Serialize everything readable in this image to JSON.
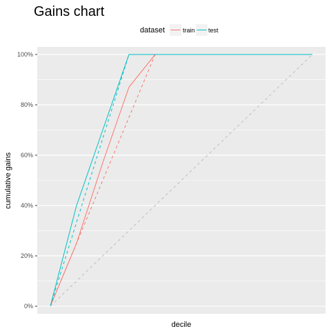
{
  "chart_data": {
    "type": "line",
    "title": "Gains chart",
    "xlabel": "decile",
    "ylabel": "cumulative gains",
    "x": [
      0,
      1,
      2,
      3,
      4,
      5,
      6,
      7,
      8,
      9,
      10
    ],
    "xlim": [
      -0.5,
      10.5
    ],
    "ylim": [
      -0.03,
      1.03
    ],
    "y_ticks": [
      0,
      0.2,
      0.4,
      0.6,
      0.8,
      1.0
    ],
    "y_tick_labels": [
      "0%",
      "20%",
      "40%",
      "60%",
      "80%",
      "100%"
    ],
    "grid": true,
    "legend": {
      "title": "dataset",
      "position": "top",
      "entries": [
        {
          "label": "train",
          "color": "#F8766D"
        },
        {
          "label": "test",
          "color": "#00BFC4"
        }
      ]
    },
    "series": [
      {
        "name": "train",
        "style": "solid",
        "color": "#F8766D",
        "points": [
          [
            0,
            0
          ],
          [
            1,
            0.25
          ],
          [
            2,
            0.57
          ],
          [
            3,
            0.87
          ],
          [
            4,
            1.0
          ],
          [
            5,
            1.0
          ],
          [
            6,
            1.0
          ],
          [
            7,
            1.0
          ],
          [
            8,
            1.0
          ],
          [
            9,
            1.0
          ],
          [
            10,
            1.0
          ]
        ]
      },
      {
        "name": "train",
        "style": "dashed",
        "color": "#F8766D",
        "points": [
          [
            0,
            0
          ],
          [
            4,
            1.0
          ],
          [
            10,
            1.0
          ]
        ]
      },
      {
        "name": "test",
        "style": "solid",
        "color": "#00BFC4",
        "points": [
          [
            0,
            0
          ],
          [
            1,
            0.4
          ],
          [
            2,
            0.7
          ],
          [
            3,
            1.0
          ],
          [
            4,
            1.0
          ],
          [
            5,
            1.0
          ],
          [
            6,
            1.0
          ],
          [
            7,
            1.0
          ],
          [
            8,
            1.0
          ],
          [
            9,
            1.0
          ],
          [
            10,
            1.0
          ]
        ]
      },
      {
        "name": "test",
        "style": "dashed",
        "color": "#00BFC4",
        "points": [
          [
            0,
            0
          ],
          [
            3,
            1.0
          ],
          [
            10,
            1.0
          ]
        ]
      },
      {
        "name": "",
        "style": "dashed",
        "color": "#BEBEBE",
        "points": [
          [
            0,
            0
          ],
          [
            10,
            1.0
          ]
        ]
      }
    ]
  }
}
